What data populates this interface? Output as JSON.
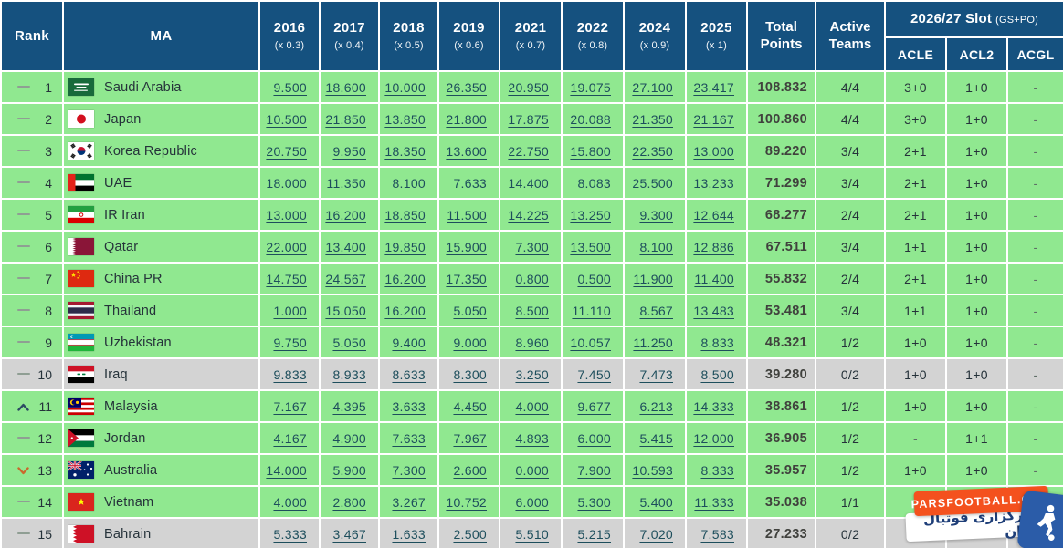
{
  "header": {
    "rank": "Rank",
    "ma": "MA",
    "years": [
      {
        "year": "2016",
        "multiplier": "(x 0.3)"
      },
      {
        "year": "2017",
        "multiplier": "(x 0.4)"
      },
      {
        "year": "2018",
        "multiplier": "(x 0.5)"
      },
      {
        "year": "2019",
        "multiplier": "(x 0.6)"
      },
      {
        "year": "2021",
        "multiplier": "(x 0.7)"
      },
      {
        "year": "2022",
        "multiplier": "(x 0.8)"
      },
      {
        "year": "2024",
        "multiplier": "(x 0.9)"
      },
      {
        "year": "2025",
        "multiplier": "(x 1)"
      }
    ],
    "total": "Total Points",
    "active": "Active Teams",
    "slot": {
      "title": "2026/27 Slot",
      "note": "(GS+PO)",
      "subcolumns": [
        "ACLE",
        "ACL2",
        "ACGL"
      ]
    }
  },
  "rows": [
    {
      "rank": "1",
      "movement": "same",
      "country": "Saudi Arabia",
      "flag": "saudi-arabia",
      "points": [
        "9.500",
        "18.600",
        "10.000",
        "26.350",
        "20.950",
        "19.075",
        "27.100",
        "23.417"
      ],
      "total": "108.832",
      "active_teams": "4/4",
      "acle": "3+0",
      "acl2": "1+0",
      "acgl": "-",
      "shade": "green"
    },
    {
      "rank": "2",
      "movement": "same",
      "country": "Japan",
      "flag": "japan",
      "points": [
        "10.500",
        "21.850",
        "13.850",
        "21.800",
        "17.875",
        "20.088",
        "21.350",
        "21.167"
      ],
      "total": "100.860",
      "active_teams": "4/4",
      "acle": "3+0",
      "acl2": "1+0",
      "acgl": "-",
      "shade": "green"
    },
    {
      "rank": "3",
      "movement": "same",
      "country": "Korea Republic",
      "flag": "korea-republic",
      "points": [
        "20.750",
        "9.950",
        "18.350",
        "13.600",
        "22.750",
        "15.800",
        "22.350",
        "13.000"
      ],
      "total": "89.220",
      "active_teams": "3/4",
      "acle": "2+1",
      "acl2": "1+0",
      "acgl": "-",
      "shade": "green"
    },
    {
      "rank": "4",
      "movement": "same",
      "country": "UAE",
      "flag": "uae",
      "points": [
        "18.000",
        "11.350",
        "8.100",
        "7.633",
        "14.400",
        "8.083",
        "25.500",
        "13.233"
      ],
      "total": "71.299",
      "active_teams": "3/4",
      "acle": "2+1",
      "acl2": "1+0",
      "acgl": "-",
      "shade": "green"
    },
    {
      "rank": "5",
      "movement": "same",
      "country": "IR Iran",
      "flag": "ir-iran",
      "points": [
        "13.000",
        "16.200",
        "18.850",
        "11.500",
        "14.225",
        "13.250",
        "9.300",
        "12.644"
      ],
      "total": "68.277",
      "active_teams": "2/4",
      "acle": "2+1",
      "acl2": "1+0",
      "acgl": "-",
      "shade": "green"
    },
    {
      "rank": "6",
      "movement": "same",
      "country": "Qatar",
      "flag": "qatar",
      "points": [
        "22.000",
        "13.400",
        "19.850",
        "15.900",
        "7.300",
        "13.500",
        "8.100",
        "12.886"
      ],
      "total": "67.511",
      "active_teams": "3/4",
      "acle": "1+1",
      "acl2": "1+0",
      "acgl": "-",
      "shade": "green"
    },
    {
      "rank": "7",
      "movement": "same",
      "country": "China PR",
      "flag": "china-pr",
      "points": [
        "14.750",
        "24.567",
        "16.200",
        "17.350",
        "0.800",
        "0.500",
        "11.900",
        "11.400"
      ],
      "total": "55.832",
      "active_teams": "2/4",
      "acle": "2+1",
      "acl2": "1+0",
      "acgl": "-",
      "shade": "green"
    },
    {
      "rank": "8",
      "movement": "same",
      "country": "Thailand",
      "flag": "thailand",
      "points": [
        "1.000",
        "15.050",
        "16.200",
        "5.050",
        "8.500",
        "11.110",
        "8.567",
        "13.483"
      ],
      "total": "53.481",
      "active_teams": "3/4",
      "acle": "1+1",
      "acl2": "1+0",
      "acgl": "-",
      "shade": "green"
    },
    {
      "rank": "9",
      "movement": "same",
      "country": "Uzbekistan",
      "flag": "uzbekistan",
      "points": [
        "9.750",
        "5.050",
        "9.400",
        "9.000",
        "8.960",
        "10.057",
        "11.250",
        "8.833"
      ],
      "total": "48.321",
      "active_teams": "1/2",
      "acle": "1+0",
      "acl2": "1+0",
      "acgl": "-",
      "shade": "green"
    },
    {
      "rank": "10",
      "movement": "same",
      "country": "Iraq",
      "flag": "iraq",
      "points": [
        "9.833",
        "8.933",
        "8.633",
        "8.300",
        "3.250",
        "7.450",
        "7.473",
        "8.500"
      ],
      "total": "39.280",
      "active_teams": "0/2",
      "acle": "1+0",
      "acl2": "1+0",
      "acgl": "-",
      "shade": "gray"
    },
    {
      "rank": "11",
      "movement": "up",
      "country": "Malaysia",
      "flag": "malaysia",
      "points": [
        "7.167",
        "4.395",
        "3.633",
        "4.450",
        "4.000",
        "9.677",
        "6.213",
        "14.333"
      ],
      "total": "38.861",
      "active_teams": "1/2",
      "acle": "1+0",
      "acl2": "1+0",
      "acgl": "-",
      "shade": "green"
    },
    {
      "rank": "12",
      "movement": "same",
      "country": "Jordan",
      "flag": "jordan",
      "points": [
        "4.167",
        "4.900",
        "7.633",
        "7.967",
        "4.893",
        "6.000",
        "5.415",
        "12.000"
      ],
      "total": "36.905",
      "active_teams": "1/2",
      "acle": "-",
      "acl2": "1+1",
      "acgl": "-",
      "shade": "green"
    },
    {
      "rank": "13",
      "movement": "down",
      "country": "Australia",
      "flag": "australia",
      "points": [
        "14.000",
        "5.900",
        "7.300",
        "2.600",
        "0.000",
        "7.900",
        "10.593",
        "8.333"
      ],
      "total": "35.957",
      "active_teams": "1/2",
      "acle": "1+0",
      "acl2": "1+0",
      "acgl": "-",
      "shade": "green"
    },
    {
      "rank": "14",
      "movement": "same",
      "country": "Vietnam",
      "flag": "vietnam",
      "points": [
        "4.000",
        "2.800",
        "3.267",
        "10.752",
        "6.000",
        "5.300",
        "5.400",
        "11.333"
      ],
      "total": "35.038",
      "active_teams": "1/1",
      "acle": "",
      "acl2": "1+1",
      "acgl": "",
      "shade": "green"
    },
    {
      "rank": "15",
      "movement": "same",
      "country": "Bahrain",
      "flag": "bahrain",
      "points": [
        "5.333",
        "3.467",
        "1.633",
        "2.500",
        "5.510",
        "5.215",
        "7.020",
        "7.583"
      ],
      "total": "27.233",
      "active_teams": "0/2",
      "acle": "",
      "acl2": "",
      "acgl": "",
      "shade": "gray"
    }
  ],
  "watermark": {
    "site": "PARSFOOTBALL.COM",
    "caption": "خبرگزاری فوتبال ایران",
    "logo_icon": "football-player-icon"
  },
  "colors": {
    "header_bg": "#15517f",
    "row_green": "#90e890",
    "row_gray": "#d3d3d3",
    "grid_line": "#ffffff",
    "link_text": "#1d4e5c",
    "body_text": "#25323a",
    "total_text": "#40413d",
    "up_arrow": "#2c4a63",
    "down_arrow": "#c96a2e",
    "dash": "#8f9e93",
    "watermark_orange": "#f4511e",
    "watermark_blue": "#2b5ca8",
    "watermark_text_blue": "#1e3e78"
  }
}
